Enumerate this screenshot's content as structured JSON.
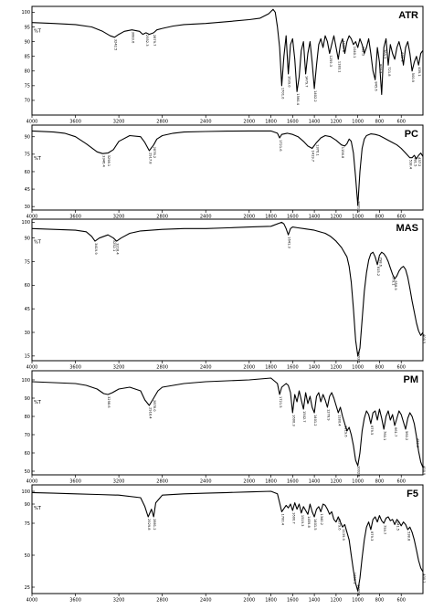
{
  "chart_data": {
    "type": "line",
    "x_direction": "reversed",
    "xlim": [
      4000,
      400
    ],
    "x_ticks": [
      4000,
      3600,
      3200,
      2800,
      2400,
      2000,
      1800,
      1600,
      1400,
      1200,
      1000,
      800,
      600
    ],
    "panels": [
      {
        "name": "ATR",
        "y_unit": "%T",
        "ylim": [
          65,
          102
        ],
        "y_ticks": [
          70,
          75,
          80,
          85,
          90,
          95,
          100
        ],
        "x": [
          4000,
          3800,
          3600,
          3450,
          3350,
          3280,
          3240,
          3200,
          3150,
          3080,
          3010,
          2980,
          2950,
          2920,
          2880,
          2850,
          2800,
          2700,
          2600,
          2400,
          2200,
          2000,
          1900,
          1820,
          1780,
          1760,
          1740,
          1720,
          1700,
          1680,
          1660,
          1640,
          1620,
          1600,
          1580,
          1560,
          1540,
          1520,
          1500,
          1480,
          1460,
          1440,
          1420,
          1400,
          1380,
          1360,
          1340,
          1320,
          1300,
          1280,
          1260,
          1240,
          1220,
          1200,
          1180,
          1160,
          1140,
          1120,
          1100,
          1080,
          1060,
          1040,
          1020,
          1000,
          980,
          960,
          940,
          920,
          900,
          880,
          860,
          840,
          820,
          800,
          780,
          760,
          740,
          720,
          700,
          680,
          660,
          640,
          620,
          600,
          580,
          560,
          540,
          520,
          500,
          480,
          460,
          440,
          420,
          400
        ],
        "y": [
          96.5,
          96.2,
          95.8,
          95,
          93.5,
          92,
          91.5,
          92.5,
          93.5,
          94,
          93.5,
          92.5,
          93,
          92.5,
          93,
          94,
          94.5,
          95.3,
          95.8,
          96.2,
          96.8,
          97.5,
          98,
          99.5,
          101,
          100,
          95,
          88,
          75,
          85,
          92,
          79,
          89,
          91,
          84,
          73,
          78,
          87,
          90,
          79,
          86,
          90,
          83,
          74,
          82,
          89,
          91,
          88,
          92,
          90,
          86,
          89,
          92,
          88,
          84,
          89,
          91,
          86,
          90,
          92,
          91,
          89,
          90,
          88,
          91,
          89,
          86,
          88,
          91,
          86,
          80,
          77,
          88,
          83,
          72,
          88,
          91,
          82,
          89,
          86,
          84,
          88,
          90,
          87,
          82,
          88,
          90,
          86,
          80,
          83,
          85,
          82,
          86,
          87
        ],
        "peak_labels": [
          {
            "x": 3240,
            "text": "3242.5"
          },
          {
            "x": 3080,
            "text": "3083.6"
          },
          {
            "x": 2950,
            "text": "2952.3"
          },
          {
            "x": 2880,
            "text": "2879.7"
          },
          {
            "x": 1700,
            "text": "1701.0"
          },
          {
            "x": 1640,
            "text": "1639.0"
          },
          {
            "x": 1560,
            "text": "1560.4"
          },
          {
            "x": 1480,
            "text": "1479.7"
          },
          {
            "x": 1400,
            "text": "1402.2"
          },
          {
            "x": 1260,
            "text": "1259.3"
          },
          {
            "x": 1180,
            "text": "1183.1"
          },
          {
            "x": 1140,
            "text": "1139.8"
          },
          {
            "x": 1040,
            "text": "1040.1"
          },
          {
            "x": 960,
            "text": "962.5"
          },
          {
            "x": 840,
            "text": "845.6"
          },
          {
            "x": 800,
            "text": "802.2"
          },
          {
            "x": 760,
            "text": "763.7"
          },
          {
            "x": 720,
            "text": "721.8"
          },
          {
            "x": 600,
            "text": "601.3"
          },
          {
            "x": 500,
            "text": "500.9"
          },
          {
            "x": 440,
            "text": "439.1"
          }
        ]
      },
      {
        "name": "PC",
        "y_unit": "%T",
        "ylim": [
          27,
          100
        ],
        "y_ticks": [
          30,
          45,
          60,
          75,
          90
        ],
        "x": [
          4000,
          3800,
          3700,
          3600,
          3500,
          3400,
          3350,
          3300,
          3250,
          3200,
          3100,
          3000,
          2960,
          2920,
          2880,
          2850,
          2800,
          2700,
          2600,
          2400,
          2200,
          2000,
          1800,
          1740,
          1720,
          1700,
          1650,
          1600,
          1550,
          1500,
          1460,
          1420,
          1380,
          1340,
          1300,
          1250,
          1200,
          1150,
          1120,
          1100,
          1080,
          1060,
          1040,
          1020,
          1000,
          980,
          960,
          940,
          920,
          880,
          840,
          800,
          760,
          720,
          680,
          640,
          600,
          560,
          520,
          500,
          480,
          460,
          440,
          420,
          400
        ],
        "y": [
          95,
          94,
          93,
          90,
          84,
          77,
          75.5,
          76,
          79,
          86,
          91,
          90,
          85,
          78,
          83,
          88,
          91,
          93,
          94,
          94.5,
          94.8,
          95,
          95,
          93,
          89,
          92,
          93,
          92,
          90,
          86,
          82,
          80,
          85,
          89,
          91,
          90,
          87,
          83,
          82,
          84,
          88,
          86,
          76,
          55,
          31,
          60,
          80,
          88,
          91,
          92.5,
          92,
          91,
          89,
          87,
          85,
          83,
          80,
          76,
          72,
          72,
          74,
          71,
          74,
          76,
          73
        ],
        "peak_labels": [
          {
            "x": 3350,
            "text": "3346.4"
          },
          {
            "x": 3300,
            "text": "3298.1"
          },
          {
            "x": 2920,
            "text": "2917.8"
          },
          {
            "x": 2880,
            "text": "2876.2"
          },
          {
            "x": 1720,
            "text": "1721.6"
          },
          {
            "x": 1420,
            "text": "1419.7"
          },
          {
            "x": 1380,
            "text": "1376.1"
          },
          {
            "x": 1150,
            "text": "1156.8"
          },
          {
            "x": 1000,
            "text": "1001.3"
          },
          {
            "x": 520,
            "text": "518.4"
          },
          {
            "x": 480,
            "text": "481.5"
          },
          {
            "x": 440,
            "text": "437.2"
          }
        ]
      },
      {
        "name": "MAS",
        "y_unit": "%T",
        "ylim": [
          12,
          102
        ],
        "y_ticks": [
          15,
          30,
          45,
          60,
          75,
          90,
          100
        ],
        "x": [
          4000,
          3800,
          3600,
          3500,
          3450,
          3420,
          3380,
          3300,
          3250,
          3220,
          3180,
          3100,
          3000,
          2800,
          2600,
          2400,
          2200,
          2000,
          1800,
          1700,
          1680,
          1660,
          1640,
          1620,
          1600,
          1550,
          1500,
          1400,
          1300,
          1250,
          1200,
          1150,
          1100,
          1080,
          1060,
          1040,
          1020,
          1000,
          980,
          960,
          940,
          920,
          900,
          880,
          860,
          840,
          820,
          800,
          780,
          760,
          740,
          720,
          700,
          680,
          660,
          640,
          620,
          600,
          580,
          560,
          540,
          520,
          500,
          480,
          460,
          440,
          420,
          400
        ],
        "y": [
          96,
          95.5,
          95,
          94,
          91,
          88,
          90,
          92,
          90,
          88,
          90,
          93,
          94.5,
          95.5,
          96,
          96,
          96.5,
          97,
          97.5,
          100,
          99,
          96,
          92,
          96,
          97,
          96.5,
          96,
          95,
          93,
          91,
          88,
          84,
          78,
          72,
          62,
          45,
          25,
          15,
          20,
          38,
          56,
          68,
          76,
          80,
          81,
          78,
          73,
          79,
          81,
          80,
          78,
          75,
          71,
          67,
          64,
          66,
          69,
          71,
          72,
          70,
          65,
          58,
          50,
          43,
          36,
          31,
          28,
          30
        ],
        "peak_labels": [
          {
            "x": 3420,
            "text": "3419.9"
          },
          {
            "x": 3250,
            "text": "3252.1"
          },
          {
            "x": 3220,
            "text": "3218.4"
          },
          {
            "x": 1640,
            "text": "1641.3"
          },
          {
            "x": 1000,
            "text": "1003.7"
          },
          {
            "x": 820,
            "text": "815.2"
          },
          {
            "x": 800,
            "text": "798.6"
          },
          {
            "x": 680,
            "text": "679.1"
          },
          {
            "x": 660,
            "text": "658.9"
          },
          {
            "x": 400,
            "text": "400.5"
          }
        ]
      },
      {
        "name": "PM",
        "y_unit": "%T",
        "ylim": [
          48,
          105
        ],
        "y_ticks": [
          50,
          60,
          70,
          80,
          90,
          100
        ],
        "x": [
          4000,
          3800,
          3600,
          3500,
          3400,
          3340,
          3300,
          3260,
          3200,
          3100,
          3000,
          2960,
          2920,
          2880,
          2840,
          2800,
          2600,
          2400,
          2200,
          2000,
          1800,
          1740,
          1720,
          1700,
          1680,
          1660,
          1640,
          1620,
          1600,
          1580,
          1560,
          1540,
          1520,
          1500,
          1480,
          1460,
          1440,
          1420,
          1400,
          1380,
          1360,
          1340,
          1320,
          1300,
          1280,
          1260,
          1240,
          1220,
          1200,
          1180,
          1160,
          1140,
          1120,
          1100,
          1080,
          1060,
          1040,
          1020,
          1000,
          980,
          960,
          940,
          920,
          900,
          880,
          860,
          840,
          820,
          800,
          780,
          760,
          740,
          720,
          700,
          680,
          660,
          640,
          620,
          600,
          580,
          560,
          540,
          520,
          500,
          480,
          460,
          440,
          420,
          400
        ],
        "y": [
          99,
          98.5,
          98,
          97,
          95,
          92.5,
          92,
          93,
          95,
          96,
          94,
          89,
          86,
          90,
          94,
          96,
          98,
          99,
          99.5,
          100,
          101,
          98,
          92,
          96,
          97,
          98,
          97,
          93,
          82,
          92,
          88,
          94,
          89,
          84,
          93,
          87,
          91,
          85,
          82,
          91,
          93,
          88,
          92,
          89,
          85,
          91,
          93,
          90,
          86,
          82,
          85,
          80,
          76,
          72,
          74,
          70,
          64,
          56,
          53,
          60,
          72,
          79,
          83,
          81,
          76,
          82,
          83,
          78,
          84,
          79,
          73,
          80,
          83,
          78,
          81,
          75,
          79,
          83,
          81,
          77,
          73,
          79,
          82,
          80,
          76,
          69,
          61,
          55,
          52
        ],
        "peak_labels": [
          {
            "x": 3300,
            "text": "3298.6"
          },
          {
            "x": 2920,
            "text": "2918.4"
          },
          {
            "x": 2880,
            "text": "2878.0"
          },
          {
            "x": 1720,
            "text": "1721.5"
          },
          {
            "x": 1600,
            "text": "1600.3"
          },
          {
            "x": 1500,
            "text": "1502.7"
          },
          {
            "x": 1400,
            "text": "1401.2"
          },
          {
            "x": 1280,
            "text": "1278.9"
          },
          {
            "x": 1180,
            "text": "1180.4"
          },
          {
            "x": 1120,
            "text": "1119.6"
          },
          {
            "x": 1000,
            "text": "1002.8"
          },
          {
            "x": 880,
            "text": "879.5"
          },
          {
            "x": 760,
            "text": "760.1"
          },
          {
            "x": 660,
            "text": "661.7"
          },
          {
            "x": 560,
            "text": "560.2"
          },
          {
            "x": 460,
            "text": "459.8"
          },
          {
            "x": 400,
            "text": "400.9"
          }
        ]
      },
      {
        "name": "F5",
        "y_unit": "%T",
        "ylim": [
          20,
          105
        ],
        "y_ticks": [
          25,
          50,
          75,
          90,
          100
        ],
        "x": [
          4000,
          3800,
          3600,
          3400,
          3200,
          3000,
          2960,
          2930,
          2900,
          2880,
          2860,
          2820,
          2800,
          2600,
          2400,
          2200,
          2000,
          1800,
          1740,
          1720,
          1700,
          1660,
          1640,
          1620,
          1600,
          1580,
          1560,
          1540,
          1520,
          1500,
          1480,
          1460,
          1440,
          1420,
          1400,
          1380,
          1360,
          1340,
          1320,
          1300,
          1280,
          1260,
          1240,
          1220,
          1200,
          1180,
          1160,
          1140,
          1120,
          1100,
          1080,
          1060,
          1040,
          1020,
          1000,
          980,
          960,
          940,
          920,
          900,
          880,
          860,
          840,
          820,
          800,
          780,
          760,
          740,
          720,
          700,
          680,
          660,
          640,
          620,
          600,
          580,
          560,
          540,
          520,
          500,
          480,
          460,
          440,
          420,
          400
        ],
        "y": [
          99,
          98.5,
          98,
          97.5,
          97,
          95,
          88,
          80,
          86,
          80,
          91,
          95,
          97,
          98,
          98.5,
          99,
          99.5,
          100,
          98,
          91,
          84,
          89,
          87,
          90,
          85,
          91,
          86,
          90,
          83,
          88,
          85,
          82,
          90,
          84,
          80,
          86,
          88,
          84,
          90,
          89,
          86,
          82,
          84,
          78,
          76,
          80,
          76,
          72,
          74,
          68,
          62,
          50,
          38,
          28,
          22,
          32,
          48,
          62,
          72,
          76,
          70,
          78,
          80,
          76,
          81,
          77,
          75,
          79,
          80,
          77,
          78,
          74,
          78,
          76,
          73,
          76,
          74,
          70,
          72,
          68,
          62,
          54,
          46,
          40,
          37
        ],
        "peak_labels": [
          {
            "x": 2930,
            "text": "2929.8"
          },
          {
            "x": 2880,
            "text": "2881.2"
          },
          {
            "x": 1700,
            "text": "1700.4"
          },
          {
            "x": 1600,
            "text": "1600.7"
          },
          {
            "x": 1520,
            "text": "1519.3"
          },
          {
            "x": 1460,
            "text": "1459.8"
          },
          {
            "x": 1400,
            "text": "1401.5"
          },
          {
            "x": 1340,
            "text": "1340.2"
          },
          {
            "x": 1180,
            "text": "1179.6"
          },
          {
            "x": 1140,
            "text": "1139.9"
          },
          {
            "x": 1040,
            "text": "1039.1"
          },
          {
            "x": 1000,
            "text": "1002.4"
          },
          {
            "x": 880,
            "text": "879.3"
          },
          {
            "x": 760,
            "text": "759.7"
          },
          {
            "x": 640,
            "text": "641.5"
          },
          {
            "x": 540,
            "text": "538.8"
          },
          {
            "x": 400,
            "text": "400.2"
          }
        ]
      }
    ]
  }
}
